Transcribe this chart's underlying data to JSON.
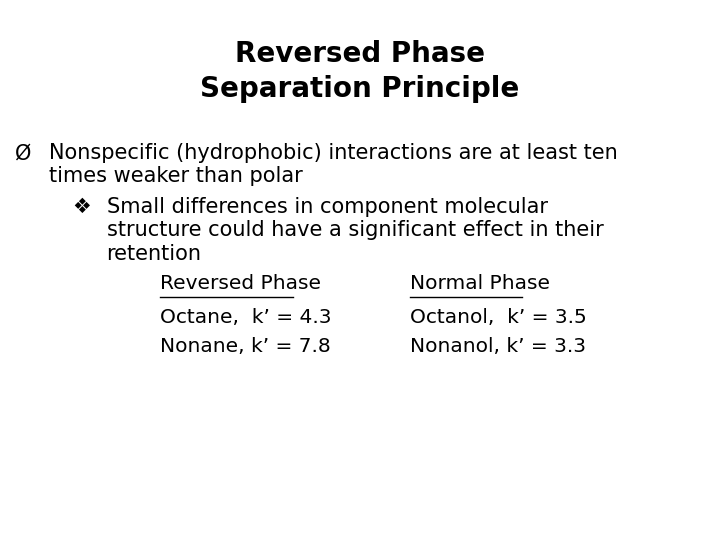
{
  "title_line1": "Reversed Phase",
  "title_line2": "Separation Principle",
  "title_fontsize": 20,
  "background_color": "#ffffff",
  "text_color": "#000000",
  "bullet1_symbol": "Ø",
  "bullet1_text_line1": "Nonspecific (hydrophobic) interactions are at least ten",
  "bullet1_text_line2": "times weaker than polar",
  "bullet2_symbol": "❖",
  "bullet2_text_line1": "Small differences in component molecular",
  "bullet2_text_line2": "structure could have a significant effect in their",
  "bullet2_text_line3": "retention",
  "col1_header": "Reversed Phase",
  "col2_header": "Normal Phase",
  "col1_row1": "Octane,  k’ = 4.3",
  "col1_row2": "Nonane, k’ = 7.8",
  "col2_row1": "Octanol,  k’ = 3.5",
  "col2_row2": "Nonanol, k’ = 3.3",
  "body_fontsize": 15,
  "table_fontsize": 14.5
}
